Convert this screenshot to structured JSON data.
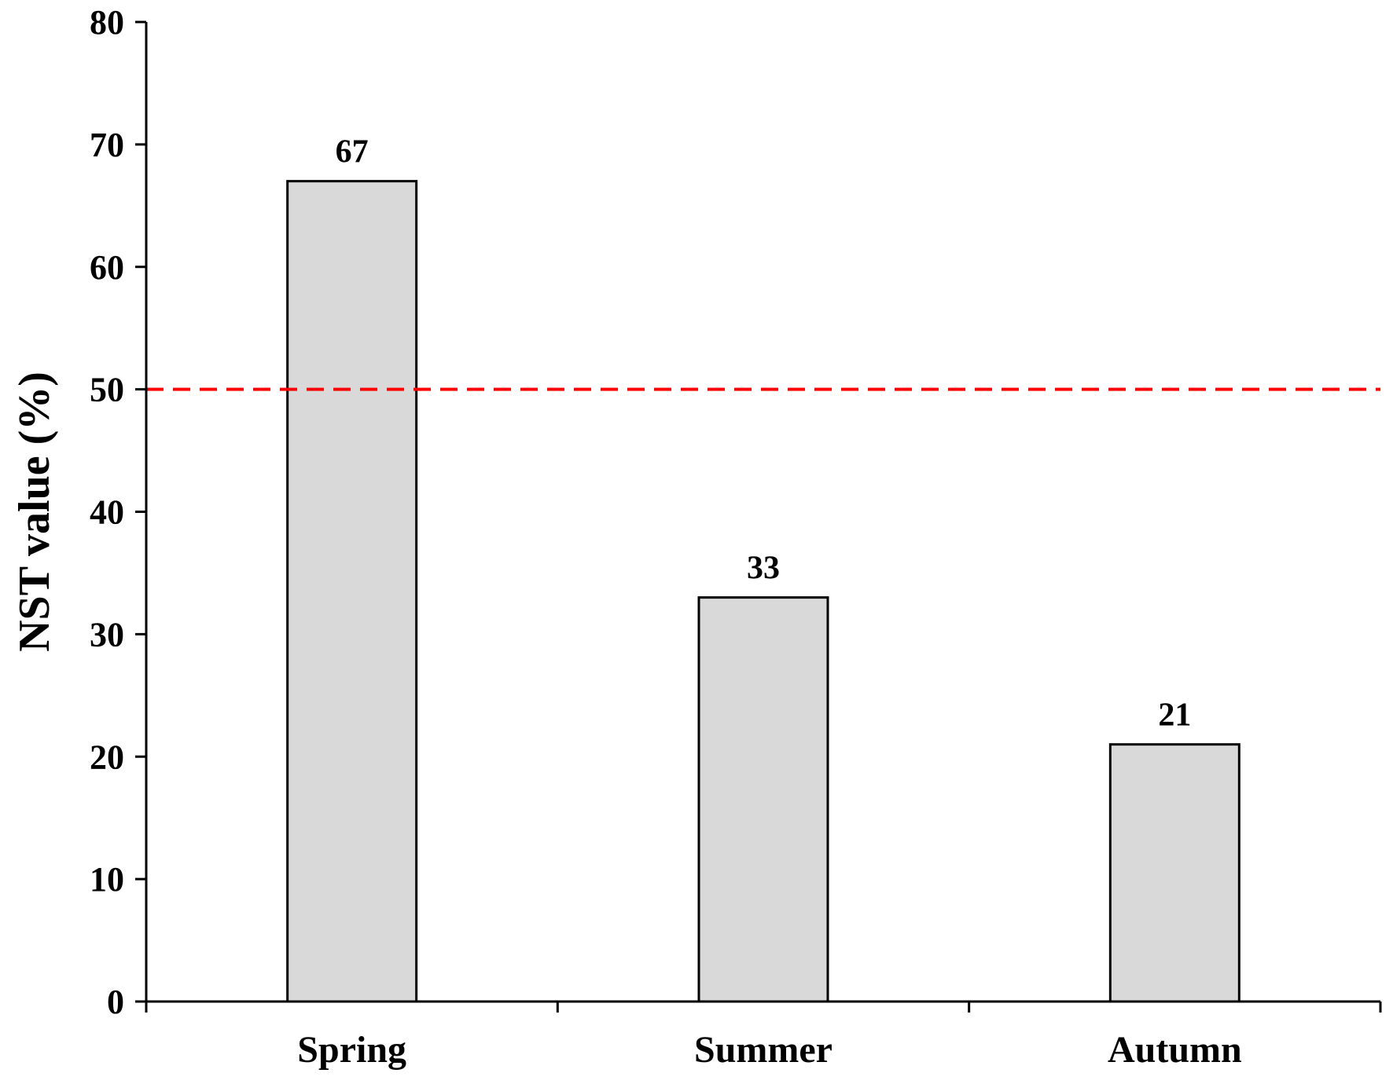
{
  "chart_data": {
    "type": "bar",
    "title": "",
    "xlabel": "",
    "ylabel": "NST value (%)",
    "categories": [
      "Spring",
      "Summer",
      "Autumn"
    ],
    "values": [
      67,
      33,
      21
    ],
    "data_labels": [
      "67",
      "33",
      "21"
    ],
    "ylim": [
      0,
      80
    ],
    "yticks": [
      0,
      10,
      20,
      30,
      40,
      50,
      60,
      70,
      80
    ],
    "reference_line": {
      "y": 50,
      "style": "dashed",
      "color": "#ff0000"
    },
    "bar_fill": "#d9d9d9",
    "bar_stroke": "#000000",
    "grid": false,
    "legend": "none"
  }
}
